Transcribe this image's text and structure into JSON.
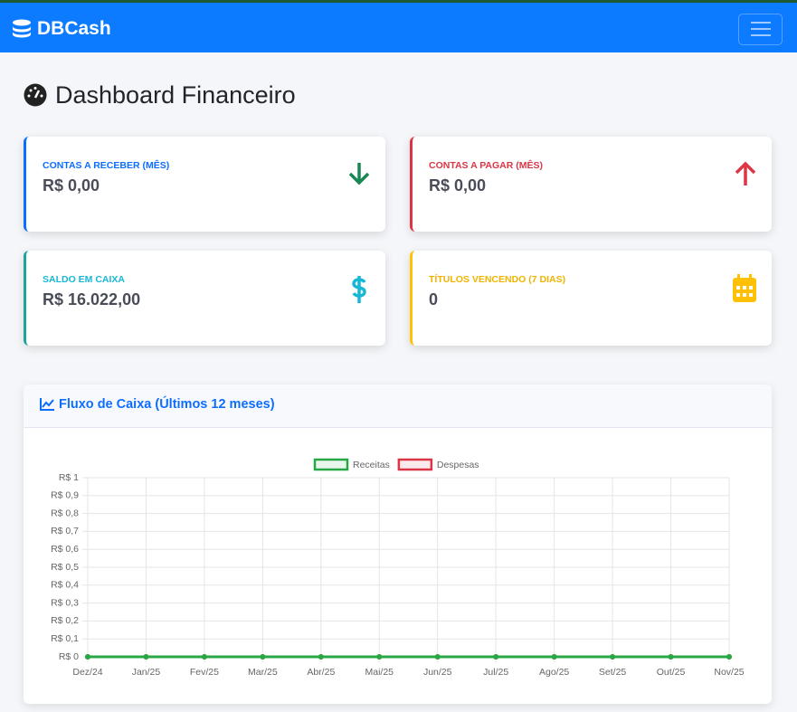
{
  "navbar": {
    "brand": "DBCash"
  },
  "header": {
    "title": "Dashboard Financeiro"
  },
  "cards": [
    {
      "label": "CONTAS A RECEBER (MÊS)",
      "value": "R$ 0,00"
    },
    {
      "label": "CONTAS A PAGAR (MÊS)",
      "value": "R$ 0,00"
    },
    {
      "label": "SALDO EM CAIXA",
      "value": "R$ 16.022,00"
    },
    {
      "label": "TÍTULOS VENCENDO (7 DIAS)",
      "value": "0"
    }
  ],
  "panel": {
    "title": "Fluxo de Caixa (Últimos 12 meses)"
  },
  "chart_data": {
    "type": "line",
    "categories": [
      "Dez/24",
      "Jan/25",
      "Fev/25",
      "Mar/25",
      "Abr/25",
      "Mai/25",
      "Jun/25",
      "Jul/25",
      "Ago/25",
      "Set/25",
      "Out/25",
      "Nov/25"
    ],
    "series": [
      {
        "name": "Receitas",
        "color": "#28a745",
        "values": [
          0,
          0,
          0,
          0,
          0,
          0,
          0,
          0,
          0,
          0,
          0,
          0
        ]
      },
      {
        "name": "Despesas",
        "color": "#dc3545",
        "values": [
          0,
          0,
          0,
          0,
          0,
          0,
          0,
          0,
          0,
          0,
          0,
          0
        ]
      }
    ],
    "ylim": [
      0,
      1
    ],
    "yticks": [
      {
        "value": 0,
        "label": "R$ 0"
      },
      {
        "value": 0.1,
        "label": "R$ 0,1"
      },
      {
        "value": 0.2,
        "label": "R$ 0,2"
      },
      {
        "value": 0.3,
        "label": "R$ 0,3"
      },
      {
        "value": 0.4,
        "label": "R$ 0,4"
      },
      {
        "value": 0.5,
        "label": "R$ 0,5"
      },
      {
        "value": 0.6,
        "label": "R$ 0,6"
      },
      {
        "value": 0.7,
        "label": "R$ 0,7"
      },
      {
        "value": 0.8,
        "label": "R$ 0,8"
      },
      {
        "value": 0.9,
        "label": "R$ 0,9"
      },
      {
        "value": 1,
        "label": "R$ 1"
      }
    ],
    "grid": true
  }
}
